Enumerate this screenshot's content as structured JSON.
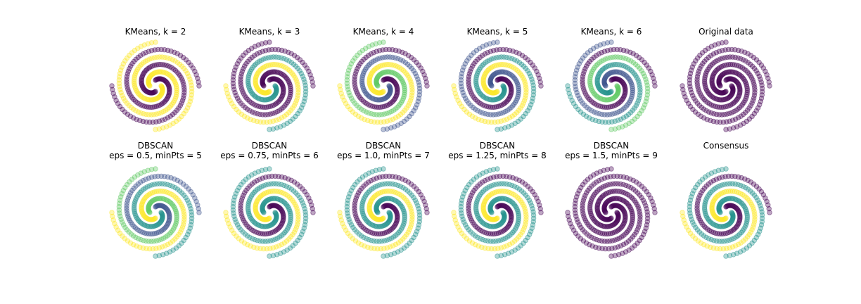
{
  "chart_data": {
    "type": "scatter",
    "palette": {
      "purple": "#440154",
      "slate": "#3b528b",
      "teal": "#21918c",
      "green": "#5ec962",
      "yellow": "#fde725"
    },
    "point_alpha": 0.35,
    "axes_visible": false,
    "grid": false,
    "legend": "none",
    "spiral_arms": {
      "turns": 1.25,
      "points_per_arm": 90,
      "note": ""
    },
    "panels": [
      {
        "id": "kmeans-2",
        "title": "KMeans, k = 2",
        "title_line2": "",
        "labels": [
          "#440154",
          "#fde725",
          "#440154",
          "#fde725"
        ]
      },
      {
        "id": "kmeans-3",
        "title": "KMeans, k = 3",
        "title_line2": "",
        "labels": [
          "#440154",
          "#21918c",
          "#fde725",
          "#440154"
        ]
      },
      {
        "id": "kmeans-4",
        "title": "KMeans, k = 4",
        "title_line2": "",
        "labels": [
          "#440154",
          "#3b528b",
          "#fde725",
          "#5ec962"
        ]
      },
      {
        "id": "kmeans-5",
        "title": "KMeans, k = 5",
        "title_line2": "",
        "labels": [
          "#440154",
          "#21918c",
          "#fde725",
          "#3b528b"
        ]
      },
      {
        "id": "kmeans-6",
        "title": "KMeans, k = 6",
        "title_line2": "",
        "labels": [
          "#440154",
          "#5ec962",
          "#21918c",
          "#3b528b"
        ]
      },
      {
        "id": "original",
        "title": "Original data",
        "title_line2": "",
        "labels": [
          "#440154",
          "#440154",
          "#440154",
          "#440154"
        ]
      },
      {
        "id": "dbscan-05",
        "title": "DBSCAN",
        "title_line2": "eps = 0.5, minPts = 5",
        "labels": [
          "#3b528b",
          "#21918c",
          "#fde725",
          "#5ec962"
        ]
      },
      {
        "id": "dbscan-075",
        "title": "DBSCAN",
        "title_line2": "eps = 0.75, minPts = 6",
        "labels": [
          "#440154",
          "#21918c",
          "#fde725",
          "#21918c"
        ]
      },
      {
        "id": "dbscan-10",
        "title": "DBSCAN",
        "title_line2": "eps = 1.0, minPts = 7",
        "labels": [
          "#440154",
          "#21918c",
          "#fde725",
          "#21918c"
        ]
      },
      {
        "id": "dbscan-125",
        "title": "DBSCAN",
        "title_line2": "eps = 1.25, minPts = 8",
        "labels": [
          "#440154",
          "#21918c",
          "#fde725",
          "#21918c"
        ]
      },
      {
        "id": "dbscan-15",
        "title": "DBSCAN",
        "title_line2": "eps = 1.5, minPts = 9",
        "labels": [
          "#440154",
          "#440154",
          "#440154",
          "#440154"
        ]
      },
      {
        "id": "consensus",
        "title": "Consensus",
        "title_line2": "",
        "labels": [
          "#440154",
          "#21918c",
          "#fde725",
          "#21918c"
        ]
      }
    ]
  }
}
